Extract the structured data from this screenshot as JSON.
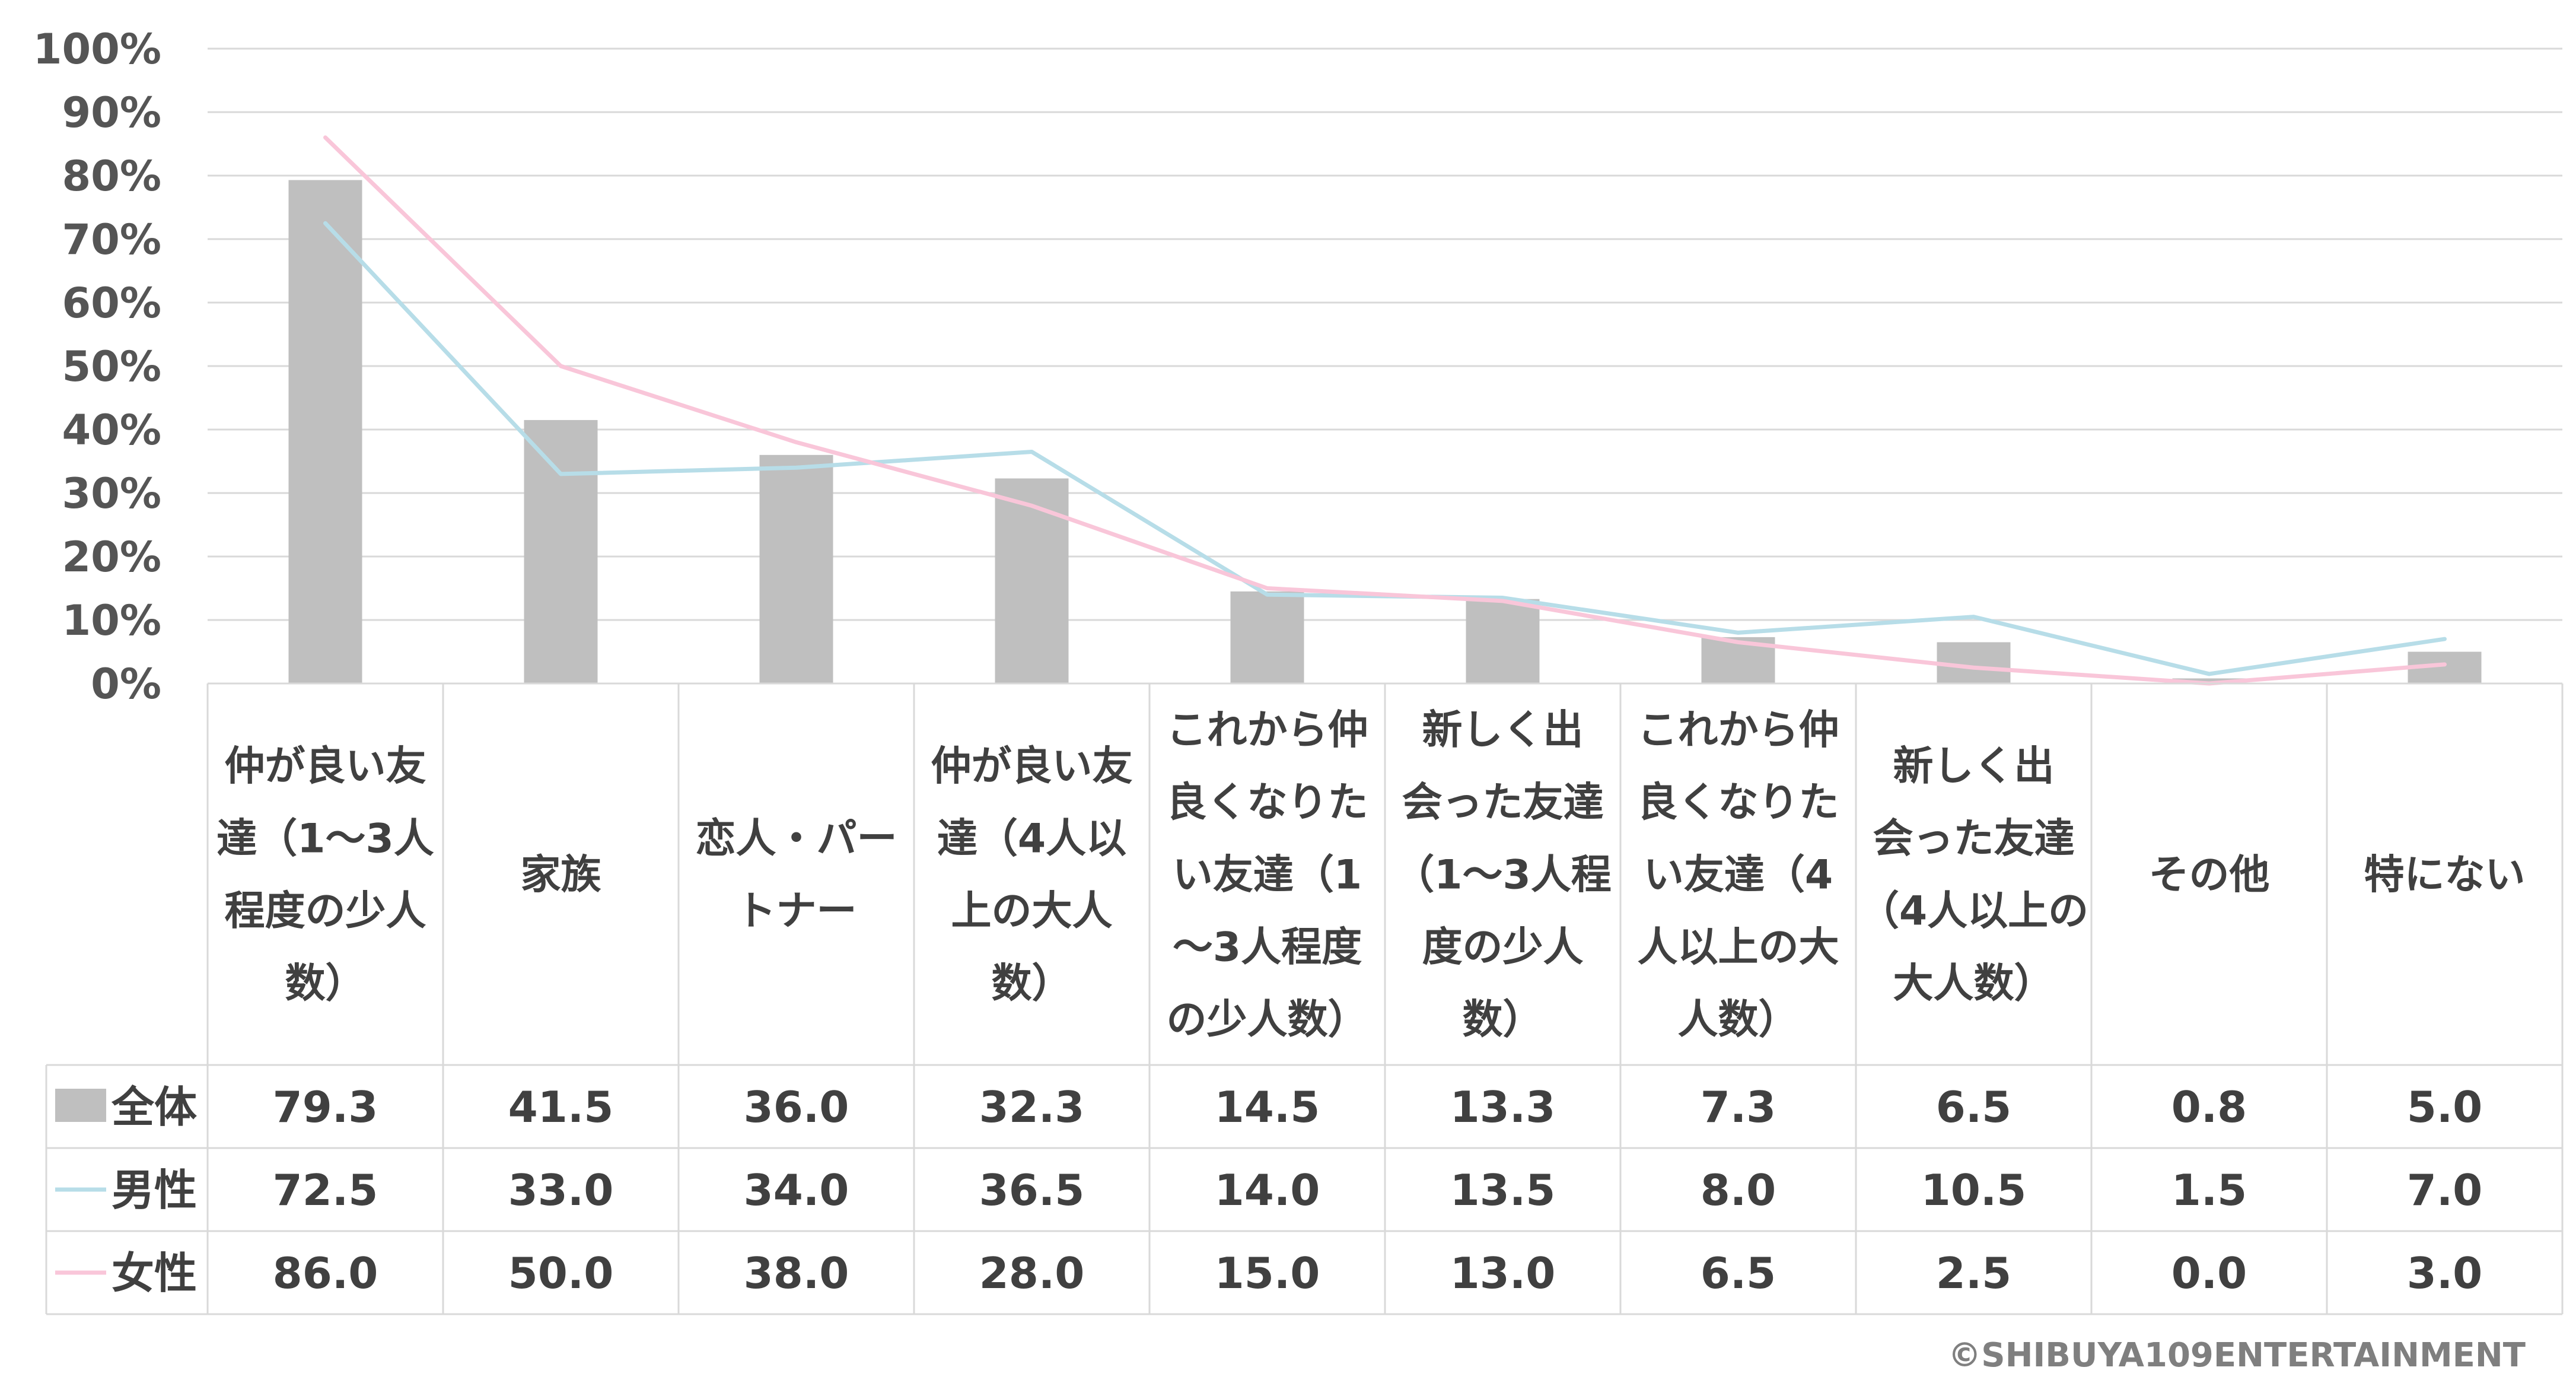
{
  "chart_data": {
    "type": "bar",
    "y_ticks": [
      "0%",
      "10%",
      "20%",
      "30%",
      "40%",
      "50%",
      "60%",
      "70%",
      "80%",
      "90%",
      "100%"
    ],
    "ylim": [
      0,
      100
    ],
    "grid": true,
    "categories": [
      "仲が良い友達（1〜3人程度の少人数）",
      "家族",
      "恋人・パートナー",
      "仲が良い友達（4人以上の大人数）",
      "これから仲良くなりたい友達（1〜3人程度の少人数）",
      "新しく出会った友達（1〜3人程度の少人数）",
      "これから仲良くなりたい友達（4人以上の大人数）",
      "新しく出会った友達（4人以上の大人数）",
      "その他",
      "特にない"
    ],
    "category_lines": [
      [
        "仲が良い友",
        "達（1〜3人",
        "程度の少人",
        "数）"
      ],
      [
        "家族"
      ],
      [
        "恋人・パー",
        "トナー"
      ],
      [
        "仲が良い友",
        "達（4人以",
        "上の大人",
        "数）"
      ],
      [
        "これから仲",
        "良くなりた",
        "い友達（1",
        "〜3人程度",
        "の少人数）"
      ],
      [
        "新しく出",
        "会った友達",
        "（1〜3人程",
        "度の少人",
        "数）"
      ],
      [
        "これから仲",
        "良くなりた",
        "い友達（4",
        "人以上の大",
        "人数）"
      ],
      [
        "新しく出",
        "会った友達",
        "（4人以上の",
        "大人数）"
      ],
      [
        "その他"
      ],
      [
        "特にない"
      ]
    ],
    "series": [
      {
        "name": "全体",
        "kind": "bar",
        "color": "#bfbfbf",
        "values": [
          79.3,
          41.5,
          36.0,
          32.3,
          14.5,
          13.3,
          7.3,
          6.5,
          0.8,
          5.0
        ],
        "labels": [
          "79.3",
          "41.5",
          "36.0",
          "32.3",
          "14.5",
          "13.3",
          "7.3",
          "6.5",
          "0.8",
          "5.0"
        ]
      },
      {
        "name": "男性",
        "kind": "line",
        "color": "#b7dde8",
        "values": [
          72.5,
          33.0,
          34.0,
          36.5,
          14.0,
          13.5,
          8.0,
          10.5,
          1.5,
          7.0
        ],
        "labels": [
          "72.5",
          "33.0",
          "34.0",
          "36.5",
          "14.0",
          "13.5",
          "8.0",
          "10.5",
          "1.5",
          "7.0"
        ]
      },
      {
        "name": "女性",
        "kind": "line",
        "color": "#f9c6d9",
        "values": [
          86.0,
          50.0,
          38.0,
          28.0,
          15.0,
          13.0,
          6.5,
          2.5,
          0.0,
          3.0
        ],
        "labels": [
          "86.0",
          "50.0",
          "38.0",
          "28.0",
          "15.0",
          "13.0",
          "6.5",
          "2.5",
          "0.0",
          "3.0"
        ]
      }
    ],
    "legend": "data-table"
  },
  "copyright": "©SHIBUYA109ENTERTAINMENT"
}
